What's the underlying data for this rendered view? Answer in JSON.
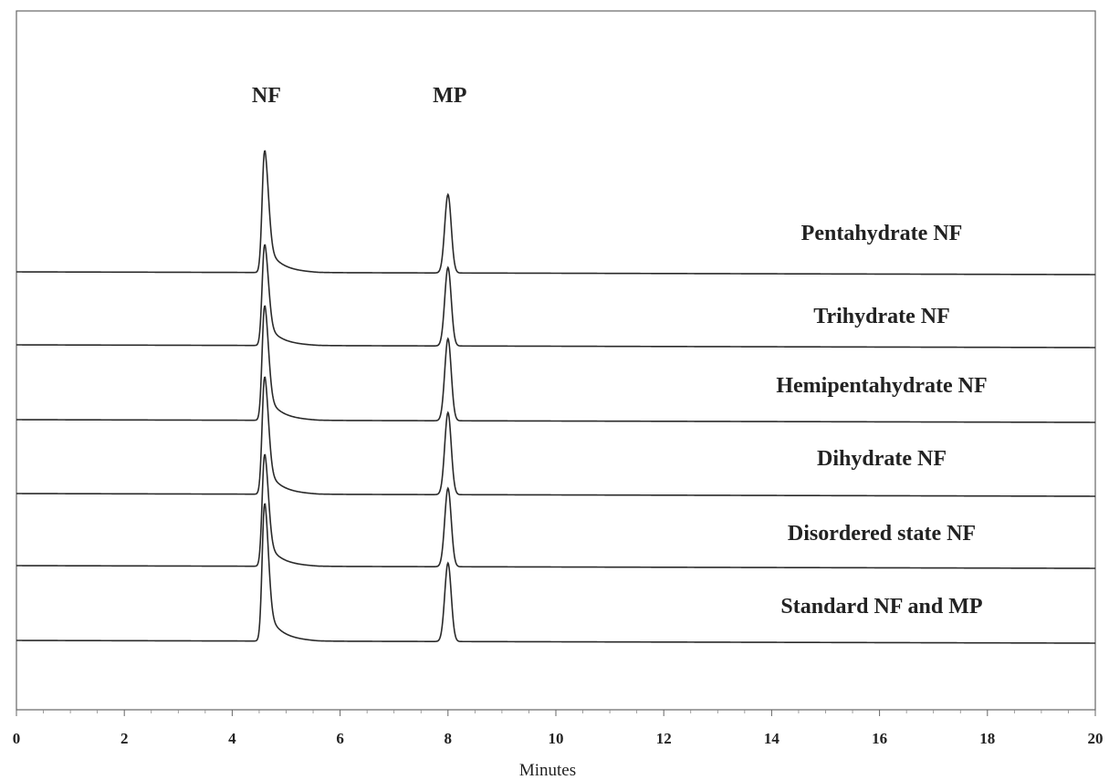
{
  "chart_data": {
    "type": "line",
    "xlabel": "Minutes",
    "xlim": [
      0,
      20
    ],
    "x_ticks": [
      0,
      2,
      4,
      6,
      8,
      10,
      12,
      14,
      16,
      18,
      20
    ],
    "x_tick_labels": [
      "0",
      "2",
      "4",
      "6",
      "8",
      "10",
      "12",
      "14",
      "16",
      "18",
      "20"
    ],
    "grid": false,
    "peak_labels": [
      {
        "text": "NF",
        "x": 4.6
      },
      {
        "text": "MP",
        "x": 8.0
      }
    ],
    "series": [
      {
        "name": "Pentahydrate NF",
        "nf_height": 133,
        "mp_height": 86
      },
      {
        "name": "Trihydrate NF",
        "nf_height": 110,
        "mp_height": 86
      },
      {
        "name": "Hemipentahydrate NF",
        "nf_height": 125,
        "mp_height": 90
      },
      {
        "name": "Dihydrate NF",
        "nf_height": 128,
        "mp_height": 90
      },
      {
        "name": "Disordered state NF",
        "nf_height": 122,
        "mp_height": 86
      },
      {
        "name": "Standard NF and MP",
        "nf_height": 150,
        "mp_height": 86
      }
    ],
    "peak_positions": {
      "nf": 4.6,
      "mp": 8.0
    },
    "colors": {
      "trace": "#2a2a2a",
      "frame": "#555555"
    }
  }
}
